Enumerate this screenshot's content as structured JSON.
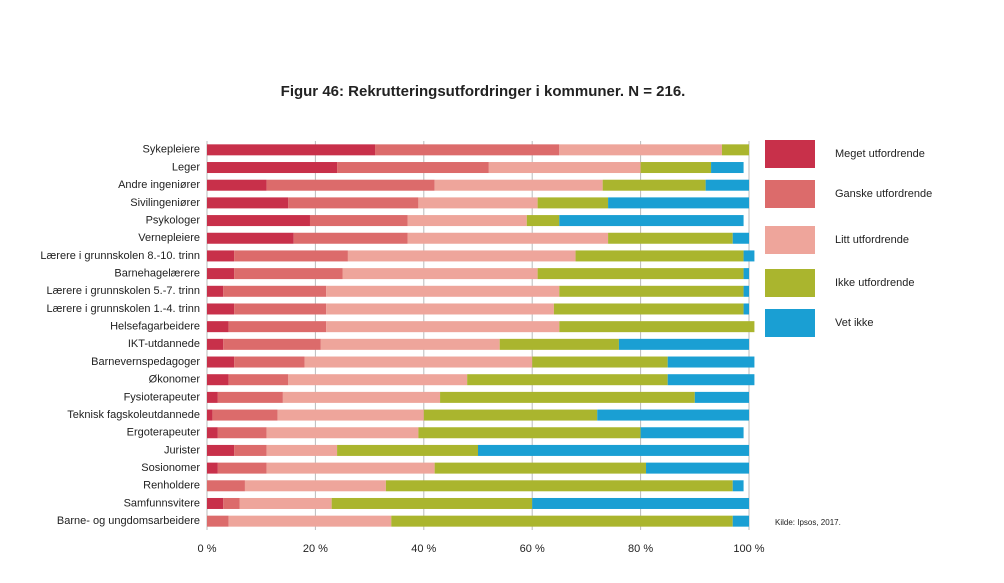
{
  "chart_data": {
    "type": "stacked-barh",
    "title": "Figur 46: Rekrutteringsutfordringer i kommuner. N = 216.",
    "source": "Kilde: Ipsos, 2017.",
    "categories": [
      "Sykepleiere",
      "Leger",
      "Andre ingeniører",
      "Sivilingeniører",
      "Psykologer",
      "Vernepleiere",
      "Lærere i grunnskolen 8.-10. trinn",
      "Barnehagelærere",
      "Lærere i grunnskolen 5.-7. trinn",
      "Lærere i grunnskolen 1.-4. trinn",
      "Helsefagarbeidere",
      "IKT-utdannede",
      "Barnevernspedagoger",
      "Økonomer",
      "Fysioterapeuter",
      "Teknisk fagskoleutdannede",
      "Ergoterapeuter",
      "Jurister",
      "Sosionomer",
      "Renholdere",
      "Samfunnsvitere",
      "Barne- og ungdomsarbeidere"
    ],
    "series": [
      {
        "name": "Meget utfordrende",
        "color": "#c8304a",
        "values": [
          31,
          24,
          11,
          15,
          19,
          16,
          5,
          5,
          3,
          5,
          4,
          3,
          5,
          4,
          2,
          1,
          2,
          5,
          2,
          0,
          3,
          0
        ]
      },
      {
        "name": "Ganske utfordrende",
        "color": "#dc6b6b",
        "values": [
          34,
          28,
          31,
          24,
          18,
          21,
          21,
          20,
          19,
          17,
          18,
          18,
          13,
          11,
          12,
          12,
          9,
          6,
          9,
          7,
          3,
          4
        ]
      },
      {
        "name": "Litt utfordrende",
        "color": "#eea59b",
        "values": [
          30,
          28,
          31,
          22,
          22,
          37,
          42,
          36,
          43,
          42,
          43,
          33,
          42,
          33,
          29,
          27,
          28,
          13,
          31,
          26,
          17,
          30
        ]
      },
      {
        "name": "Ikke utfordrende",
        "color": "#aab52e",
        "values": [
          5,
          13,
          19,
          13,
          6,
          23,
          31,
          38,
          34,
          35,
          36,
          22,
          25,
          37,
          47,
          32,
          41,
          26,
          39,
          64,
          37,
          63
        ]
      },
      {
        "name": "Vet ikke",
        "color": "#1a9fd3",
        "values": [
          0,
          6,
          8,
          26,
          34,
          3,
          2,
          1,
          1,
          1,
          0,
          24,
          16,
          16,
          10,
          28,
          19,
          50,
          19,
          2,
          40,
          3
        ]
      }
    ],
    "xlim": [
      0,
      100
    ],
    "xticks": [
      {
        "value": 0,
        "label": "0 %"
      },
      {
        "value": 20,
        "label": "20 %"
      },
      {
        "value": 40,
        "label": "40 %"
      },
      {
        "value": 60,
        "label": "60 %"
      },
      {
        "value": 80,
        "label": "80 %"
      },
      {
        "value": 100,
        "label": "100 %"
      }
    ],
    "grid": true
  }
}
